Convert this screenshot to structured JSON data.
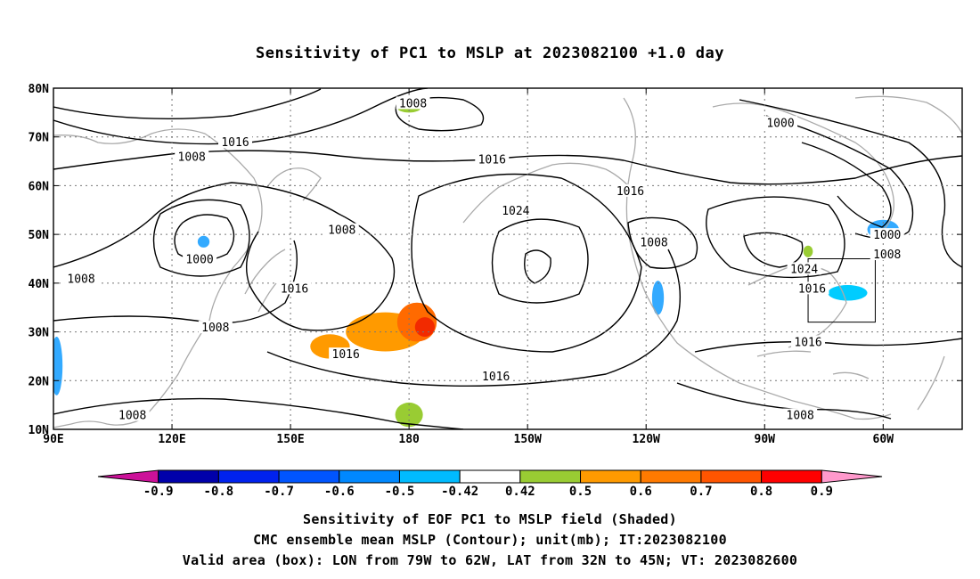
{
  "title": "Sensitivity of PC1 to MSLP at 2023082100 +1.0 day",
  "map": {
    "lat_labels": [
      "80N",
      "70N",
      "60N",
      "50N",
      "40N",
      "30N",
      "20N",
      "10N"
    ],
    "lon_labels": [
      "90E",
      "120E",
      "150E",
      "180",
      "150W",
      "120W",
      "90W",
      "60W"
    ],
    "lat_values": [
      80,
      70,
      60,
      50,
      40,
      30,
      20,
      10
    ],
    "lon_values": [
      90,
      120,
      150,
      180,
      210,
      240,
      270,
      300
    ],
    "extent": {
      "lon": [
        90,
        320
      ],
      "lat": [
        10,
        80
      ]
    },
    "gridlines": "dotted",
    "coastline_color": "#aaaaaa",
    "contour_color": "#000000",
    "valid_box": {
      "lon": [
        281,
        298
      ],
      "lat": [
        32,
        45
      ]
    },
    "contour_labels": [
      {
        "text": "1008",
        "lon": 181,
        "lat": 77
      },
      {
        "text": "1016",
        "lon": 136,
        "lat": 69
      },
      {
        "text": "1008",
        "lon": 125,
        "lat": 66
      },
      {
        "text": "1016",
        "lon": 201,
        "lat": 65.5
      },
      {
        "text": "1024",
        "lon": 207,
        "lat": 55
      },
      {
        "text": "1016",
        "lon": 236,
        "lat": 59
      },
      {
        "text": "1008",
        "lon": 163,
        "lat": 51
      },
      {
        "text": "1000",
        "lon": 127,
        "lat": 45
      },
      {
        "text": "1008",
        "lon": 97,
        "lat": 41
      },
      {
        "text": "1016",
        "lon": 151,
        "lat": 39
      },
      {
        "text": "1008",
        "lon": 131,
        "lat": 31
      },
      {
        "text": "1016",
        "lon": 164,
        "lat": 25.5
      },
      {
        "text": "1016",
        "lon": 202,
        "lat": 21
      },
      {
        "text": "1008",
        "lon": 242,
        "lat": 48.5
      },
      {
        "text": "1000",
        "lon": 274,
        "lat": 73
      },
      {
        "text": "1000",
        "lon": 301,
        "lat": 50
      },
      {
        "text": "1008",
        "lon": 301,
        "lat": 46
      },
      {
        "text": "1024",
        "lon": 280,
        "lat": 43
      },
      {
        "text": "1016",
        "lon": 282,
        "lat": 39
      },
      {
        "text": "1016",
        "lon": 281,
        "lat": 28
      },
      {
        "text": "1008",
        "lon": 110,
        "lat": 13
      },
      {
        "text": "1008",
        "lon": 279,
        "lat": 13
      }
    ],
    "shaded_regions": [
      {
        "color": "#ff9a00",
        "lon": 160,
        "lat": 27,
        "rx": 5,
        "ry": 2.5
      },
      {
        "color": "#ff9a00",
        "lon": 174,
        "lat": 30,
        "rx": 10,
        "ry": 4
      },
      {
        "color": "#ff6a00",
        "lon": 182,
        "lat": 32,
        "rx": 5,
        "ry": 4
      },
      {
        "color": "#f22a00",
        "lon": 184,
        "lat": 31,
        "rx": 2.5,
        "ry": 2
      },
      {
        "color": "#99cc33",
        "lon": 180,
        "lat": 13,
        "rx": 3.5,
        "ry": 2.5
      },
      {
        "color": "#99cc33",
        "lon": 180,
        "lat": 76,
        "rx": 3,
        "ry": 1
      },
      {
        "color": "#33aaff",
        "lon": 128,
        "lat": 48.5,
        "rx": 1.5,
        "ry": 1.2
      },
      {
        "color": "#33aaff",
        "lon": 90.8,
        "lat": 23,
        "rx": 1.5,
        "ry": 6
      },
      {
        "color": "#33aaff",
        "lon": 243,
        "lat": 37,
        "rx": 1.5,
        "ry": 3.5
      },
      {
        "color": "#00ccff",
        "lon": 291,
        "lat": 38,
        "rx": 5,
        "ry": 1.6
      },
      {
        "color": "#33aaff",
        "lon": 300,
        "lat": 51,
        "rx": 4,
        "ry": 2
      },
      {
        "color": "#99cc33",
        "lon": 281,
        "lat": 46.5,
        "rx": 1.2,
        "ry": 1.2
      }
    ]
  },
  "colorbar": {
    "labels": [
      "-0.9",
      "-0.8",
      "-0.7",
      "-0.6",
      "-0.5",
      "-0.42",
      "0.42",
      "0.5",
      "0.6",
      "0.7",
      "0.8",
      "0.9"
    ],
    "colors": [
      "#0000aa",
      "#0022ee",
      "#0055ff",
      "#0088ff",
      "#00bbff",
      "#ffffff",
      "#99cc33",
      "#ff9a00",
      "#ff7a00",
      "#ff5500",
      "#ff0000"
    ],
    "low_end_color": "#cc1199",
    "high_end_color": "#ff99cc"
  },
  "footer": {
    "line1": "Sensitivity of EOF PC1 to MSLP field (Shaded)",
    "line2": "CMC ensemble mean MSLP (Contour); unit(mb); IT:2023082100",
    "line3": "Valid area (box): LON from 79W to 62W, LAT from 32N to 45N; VT: 2023082600"
  }
}
